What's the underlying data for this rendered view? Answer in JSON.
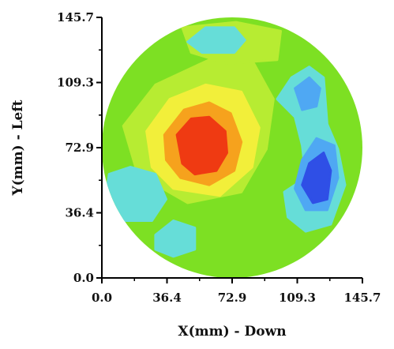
{
  "chart_data": {
    "type": "heatmap",
    "title": "",
    "xlabel": "X(mm) - Down",
    "ylabel": "Y(mm) - Left",
    "xlim": [
      0,
      145.7
    ],
    "ylim": [
      0,
      145.7
    ],
    "xticks": [
      "0.0",
      "36.4",
      "72.9",
      "109.3",
      "145.7"
    ],
    "yticks": [
      "0.0",
      "36.4",
      "72.9",
      "109.3",
      "145.7"
    ],
    "grid": false,
    "legend": "none",
    "background_level": "green",
    "levels": [
      {
        "name": "light-green",
        "color": "#b7ec32"
      },
      {
        "name": "green",
        "color": "#7de023"
      },
      {
        "name": "yellow",
        "color": "#f2ef3a"
      },
      {
        "name": "orange",
        "color": "#f6a21d"
      },
      {
        "name": "red",
        "color": "#ef3a12"
      },
      {
        "name": "cyan",
        "color": "#66ddd8"
      },
      {
        "name": "light-blue",
        "color": "#4fa8f3"
      },
      {
        "name": "blue",
        "color": "#2f4fe6"
      }
    ],
    "regions": [
      {
        "level": "light-green",
        "points": [
          [
            12,
            85
          ],
          [
            30,
            108
          ],
          [
            60,
            122
          ],
          [
            85,
            120
          ],
          [
            96,
            100
          ],
          [
            92,
            72
          ],
          [
            78,
            48
          ],
          [
            48,
            42
          ],
          [
            20,
            58
          ]
        ]
      },
      {
        "level": "light-green",
        "points": [
          [
            45,
            140
          ],
          [
            75,
            143
          ],
          [
            100,
            138
          ],
          [
            98,
            122
          ],
          [
            70,
            120
          ],
          [
            50,
            126
          ]
        ]
      },
      {
        "level": "yellow",
        "points": [
          [
            25,
            82
          ],
          [
            38,
            100
          ],
          [
            58,
            108
          ],
          [
            78,
            104
          ],
          [
            88,
            84
          ],
          [
            84,
            62
          ],
          [
            66,
            46
          ],
          [
            40,
            50
          ],
          [
            28,
            62
          ]
        ]
      },
      {
        "level": "orange",
        "points": [
          [
            35,
            80
          ],
          [
            46,
            94
          ],
          [
            60,
            98
          ],
          [
            72,
            92
          ],
          [
            78,
            76
          ],
          [
            74,
            60
          ],
          [
            60,
            52
          ],
          [
            44,
            56
          ],
          [
            36,
            66
          ]
        ]
      },
      {
        "level": "red",
        "points": [
          [
            42,
            80
          ],
          [
            50,
            89
          ],
          [
            60,
            90
          ],
          [
            69,
            82
          ],
          [
            70,
            70
          ],
          [
            64,
            60
          ],
          [
            52,
            58
          ],
          [
            45,
            64
          ]
        ]
      },
      {
        "level": "cyan",
        "points": [
          [
            48,
            132
          ],
          [
            58,
            140
          ],
          [
            74,
            140
          ],
          [
            80,
            133
          ],
          [
            74,
            126
          ],
          [
            56,
            126
          ]
        ]
      },
      {
        "level": "cyan",
        "points": [
          [
            4,
            58
          ],
          [
            16,
            62
          ],
          [
            30,
            58
          ],
          [
            36,
            44
          ],
          [
            28,
            32
          ],
          [
            12,
            32
          ],
          [
            2,
            44
          ]
        ]
      },
      {
        "level": "cyan",
        "points": [
          [
            30,
            24
          ],
          [
            40,
            32
          ],
          [
            52,
            28
          ],
          [
            52,
            16
          ],
          [
            40,
            12
          ],
          [
            30,
            16
          ]
        ]
      },
      {
        "level": "cyan",
        "points": [
          [
            98,
            100
          ],
          [
            106,
            112
          ],
          [
            116,
            118
          ],
          [
            124,
            112
          ],
          [
            126,
            86
          ],
          [
            132,
            72
          ],
          [
            136,
            52
          ],
          [
            128,
            30
          ],
          [
            114,
            26
          ],
          [
            104,
            34
          ],
          [
            102,
            48
          ],
          [
            114,
            56
          ],
          [
            112,
            74
          ],
          [
            108,
            90
          ]
        ]
      },
      {
        "level": "light-blue",
        "points": [
          [
            108,
            106
          ],
          [
            116,
            112
          ],
          [
            122,
            106
          ],
          [
            120,
            96
          ],
          [
            112,
            94
          ]
        ]
      },
      {
        "level": "light-blue",
        "points": [
          [
            108,
            50
          ],
          [
            112,
            66
          ],
          [
            120,
            78
          ],
          [
            130,
            74
          ],
          [
            132,
            56
          ],
          [
            126,
            38
          ],
          [
            114,
            38
          ]
        ]
      },
      {
        "level": "blue",
        "points": [
          [
            112,
            52
          ],
          [
            116,
            64
          ],
          [
            124,
            70
          ],
          [
            128,
            60
          ],
          [
            126,
            44
          ],
          [
            118,
            42
          ]
        ]
      }
    ]
  }
}
